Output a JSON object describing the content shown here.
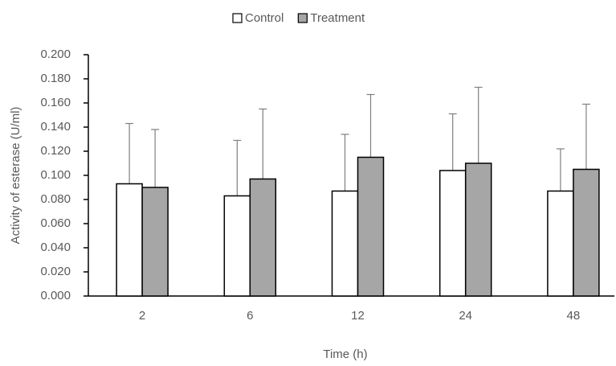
{
  "chart_data": {
    "type": "bar",
    "x_label": "Time (h)",
    "y_label": "Activity of esterase (U/ml)",
    "categories": [
      "2",
      "6",
      "12",
      "24",
      "48"
    ],
    "series": [
      {
        "name": "Control",
        "color": "#ffffff",
        "values": [
          0.093,
          0.083,
          0.087,
          0.104,
          0.087
        ],
        "errors": [
          0.05,
          0.046,
          0.047,
          0.047,
          0.035
        ]
      },
      {
        "name": "Treatment",
        "color": "#a6a6a6",
        "values": [
          0.09,
          0.097,
          0.115,
          0.11,
          0.105
        ],
        "errors": [
          0.048,
          0.058,
          0.052,
          0.063,
          0.054
        ]
      }
    ],
    "ylim": [
      0,
      0.2
    ],
    "yticks": [
      {
        "value": 0,
        "label": "0.000"
      },
      {
        "value": 0.02,
        "label": "0.020"
      },
      {
        "value": 0.04,
        "label": "0.040"
      },
      {
        "value": 0.06,
        "label": "0.060"
      },
      {
        "value": 0.08,
        "label": "0.080"
      },
      {
        "value": 0.1,
        "label": "0.100"
      },
      {
        "value": 0.12,
        "label": "0.120"
      },
      {
        "value": 0.14,
        "label": "0.140"
      },
      {
        "value": 0.16,
        "label": "0.160"
      },
      {
        "value": 0.18,
        "label": "0.180"
      },
      {
        "value": 0.2,
        "label": "0.200"
      }
    ],
    "legend": "top"
  }
}
